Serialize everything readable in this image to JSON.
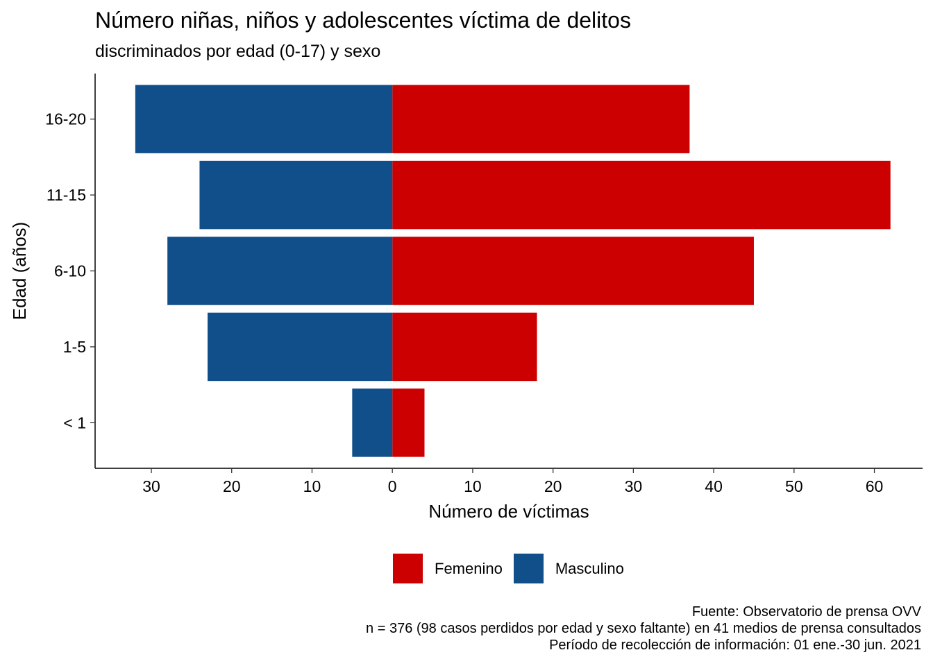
{
  "chart_data": {
    "type": "bar",
    "orientation": "horizontal",
    "title": "Número niñas, niños y adolescentes víctima de delitos",
    "subtitle": "discriminados por edad (0-17) y sexo",
    "xlabel": "Número de víctimas",
    "ylabel": "Edad (años)",
    "categories": [
      "< 1",
      "1-5",
      "6-10",
      "11-15",
      "16-20"
    ],
    "series": [
      {
        "name": "Femenino",
        "color": "#CC0000",
        "direction": "right",
        "values": [
          4,
          18,
          45,
          62,
          37
        ]
      },
      {
        "name": "Masculino",
        "color": "#114F8A",
        "direction": "left",
        "values": [
          5,
          23,
          28,
          24,
          32
        ]
      }
    ],
    "xlim": [
      -37,
      66
    ],
    "xticks": [
      -30,
      -20,
      -10,
      0,
      10,
      20,
      30,
      40,
      50,
      60
    ],
    "xtick_labels": [
      "30",
      "20",
      "10",
      "0",
      "10",
      "20",
      "30",
      "40",
      "50",
      "60"
    ],
    "grid": false,
    "legend_position": "bottom",
    "caption": [
      "Fuente: Observatorio de prensa OVV",
      "n = 376 (98 casos perdidos por edad y sexo faltante) en 41 medios de prensa consultados",
      "Período de recolección de información: 01 ene.-30 jun. 2021"
    ]
  }
}
